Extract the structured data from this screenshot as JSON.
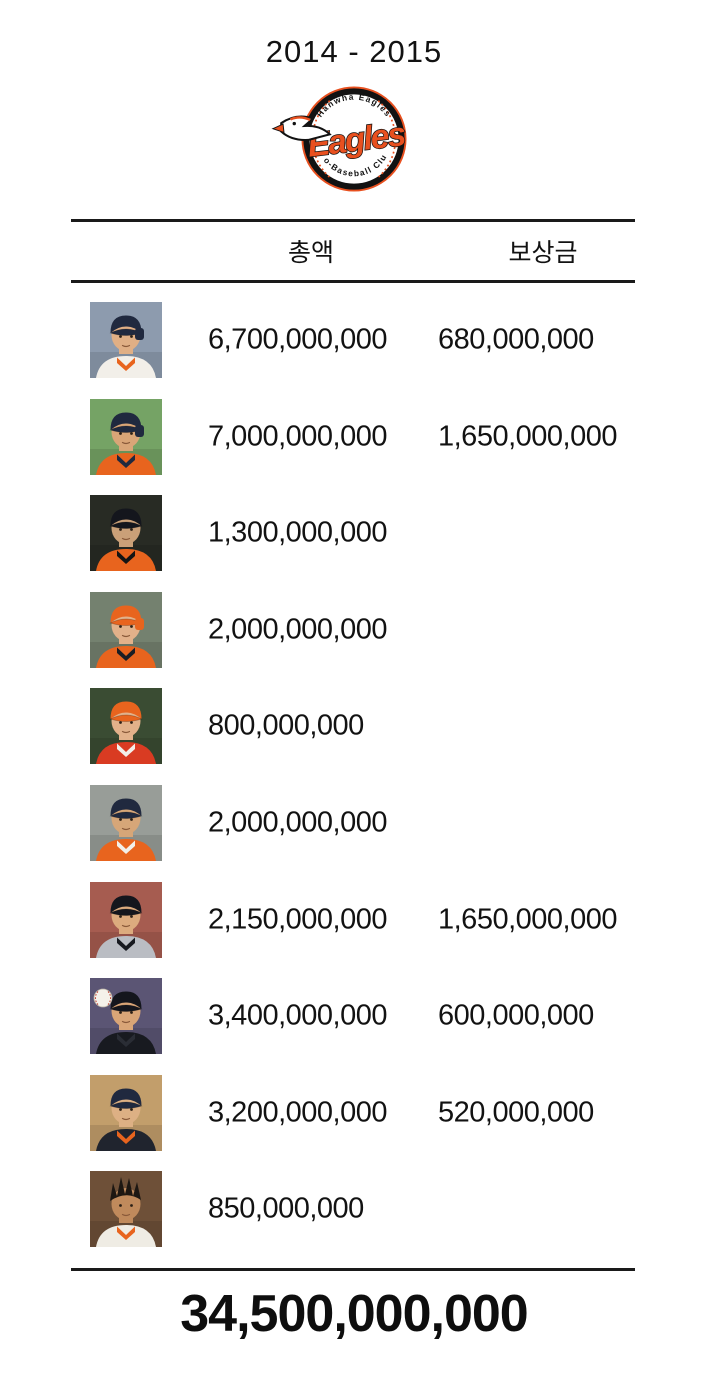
{
  "header": {
    "title": "2014 - 2015"
  },
  "logo": {
    "top_text": "Hanwha Eagles",
    "script_text": "Eagles",
    "bottom_text": "Pro-Baseball Club",
    "accent_color": "#e8501f",
    "ring_color": "#121212",
    "ball_color": "#ffffff"
  },
  "table": {
    "columns": [
      {
        "label": "총액"
      },
      {
        "label": "보상금"
      }
    ],
    "rows": [
      {
        "total": "6,700,000,000",
        "compensation": "680,000,000",
        "photo": {
          "desc": "batter in navy helmet, white-orange jersey, crowd background",
          "style": "helmet",
          "bg": "#8d9bae",
          "cap": "#20293f",
          "jersey": "#f2efe9",
          "accent": "#e8641e",
          "skin": "#e0af85",
          "ball": false
        }
      },
      {
        "total": "7,000,000,000",
        "compensation": "1,650,000,000",
        "photo": {
          "desc": "batter in navy helmet, orange jersey, green field background",
          "style": "helmet",
          "bg": "#75a365",
          "cap": "#20293f",
          "jersey": "#e8641e",
          "accent": "#20293f",
          "skin": "#d9a577",
          "ball": false
        }
      },
      {
        "total": "1,300,000,000",
        "compensation": "",
        "photo": {
          "desc": "player in black cap, orange jersey, dark night background",
          "style": "cap",
          "bg": "#282b24",
          "cap": "#14161d",
          "jersey": "#e8641e",
          "accent": "#141414",
          "skin": "#caa078",
          "ball": false
        }
      },
      {
        "total": "2,000,000,000",
        "compensation": "",
        "photo": {
          "desc": "batter in orange helmet, orange jersey, grey-green background",
          "style": "helmet",
          "bg": "#74816f",
          "cap": "#e8641e",
          "jersey": "#e8641e",
          "accent": "#1a1d24",
          "skin": "#e2b18a",
          "ball": false
        }
      },
      {
        "total": "800,000,000",
        "compensation": "",
        "photo": {
          "desc": "pitcher in orange cap, red jersey, dark green background",
          "style": "cap",
          "bg": "#3a4c33",
          "cap": "#e8641e",
          "jersey": "#d93b22",
          "accent": "#f2efe9",
          "skin": "#e2b18a",
          "ball": false
        }
      },
      {
        "total": "2,000,000,000",
        "compensation": "",
        "photo": {
          "desc": "veteran in navy cap, orange jacket, grey background",
          "style": "cap",
          "bg": "#989d98",
          "cap": "#20293f",
          "jersey": "#e8641e",
          "accent": "#f2efe9",
          "skin": "#d6a678",
          "ball": false
        }
      },
      {
        "total": "2,150,000,000",
        "compensation": "1,650,000,000",
        "photo": {
          "desc": "player in black cap, grey away jersey, red stands background",
          "style": "cap",
          "bg": "#a65c50",
          "cap": "#14161d",
          "jersey": "#babdc3",
          "accent": "#17191f",
          "skin": "#dcab7e",
          "ball": false
        }
      },
      {
        "total": "3,400,000,000",
        "compensation": "600,000,000",
        "photo": {
          "desc": "pitcher holding baseball, black cap and jersey, purple background",
          "style": "cap",
          "bg": "#5b5574",
          "cap": "#14161d",
          "jersey": "#181a20",
          "accent": "#2a2d35",
          "skin": "#d9a577",
          "ball": true
        }
      },
      {
        "total": "3,200,000,000",
        "compensation": "520,000,000",
        "photo": {
          "desc": "player in navy cap, dark navy jersey, tan background",
          "style": "cap",
          "bg": "#c29e6b",
          "cap": "#20293f",
          "jersey": "#20242e",
          "accent": "#e8641e",
          "skin": "#ddb084",
          "ball": false
        }
      },
      {
        "total": "850,000,000",
        "compensation": "",
        "photo": {
          "desc": "player with wild spiky hair, white pinstripe jersey, wood background",
          "style": "hair",
          "bg": "#6e5038",
          "cap": "#1d1712",
          "hair": "#1d1712",
          "jersey": "#efece4",
          "accent": "#e8641e",
          "skin": "#c08a5c",
          "ball": false
        }
      }
    ],
    "grand_total": "34,500,000,000"
  },
  "chart_data": {
    "type": "table",
    "title": "2014 - 2015",
    "team": "Hanwha Eagles Pro-Baseball Club",
    "columns": [
      "총액",
      "보상금"
    ],
    "rows": [
      {
        "총액": 6700000000,
        "보상금": 680000000
      },
      {
        "총액": 7000000000,
        "보상금": 1650000000
      },
      {
        "총액": 1300000000,
        "보상금": null
      },
      {
        "총액": 2000000000,
        "보상금": null
      },
      {
        "총액": 800000000,
        "보상금": null
      },
      {
        "총액": 2000000000,
        "보상금": null
      },
      {
        "총액": 2150000000,
        "보상금": 1650000000
      },
      {
        "총액": 3400000000,
        "보상금": 600000000
      },
      {
        "총액": 3200000000,
        "보상금": 520000000
      },
      {
        "총액": 850000000,
        "보상금": null
      }
    ],
    "grand_total": 34500000000
  }
}
